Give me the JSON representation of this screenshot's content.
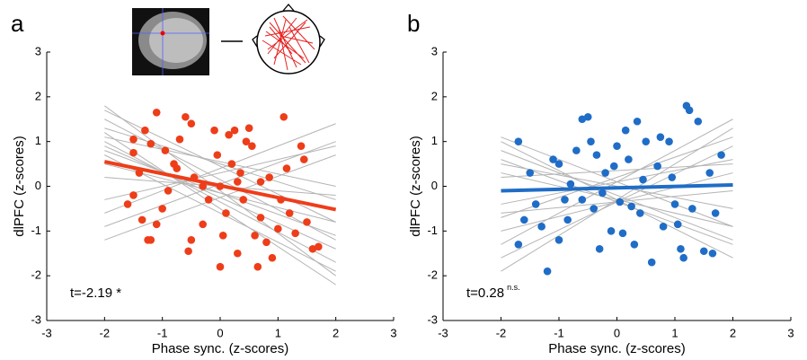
{
  "chart_data": [
    {
      "type": "scatter",
      "panel_label": "a",
      "xlabel": "Phase sync. (z-scores)",
      "ylabel": "dlPFC (z-scores)",
      "annotation": "t=-2.19 *",
      "xlim": [
        -3,
        3
      ],
      "ylim": [
        -3,
        3
      ],
      "xticks": [
        -3,
        -2,
        -1,
        0,
        1,
        2,
        3
      ],
      "yticks": [
        -3,
        -2,
        -1,
        0,
        1,
        2,
        3
      ],
      "color": "#ee3d19",
      "x": [
        -1.5,
        -1.5,
        -1.3,
        -1.1,
        -1.2,
        -1.4,
        -1.6,
        -1.5,
        -1.35,
        -1.25,
        -1.1,
        -1.0,
        -0.9,
        -0.8,
        -0.7,
        -0.6,
        -0.5,
        -0.55,
        -0.5,
        -0.45,
        -0.3,
        -0.2,
        -0.1,
        -0.05,
        0.0,
        0.0,
        0.1,
        0.15,
        0.2,
        0.25,
        0.3,
        0.35,
        0.4,
        0.45,
        0.5,
        0.55,
        0.6,
        0.65,
        0.7,
        0.8,
        0.85,
        0.9,
        1.0,
        1.05,
        1.1,
        1.15,
        1.2,
        1.3,
        1.4,
        1.5,
        1.6,
        1.7,
        -1.2,
        -0.75,
        0.3,
        -0.3,
        0.7,
        1.45,
        -0.95,
        0.05
      ],
      "values": [
        0.75,
        1.05,
        1.25,
        1.65,
        0.95,
        0.3,
        -0.4,
        -0.2,
        -0.75,
        -1.2,
        -0.85,
        -0.5,
        -0.1,
        0.5,
        1.05,
        1.55,
        1.4,
        -1.45,
        -1.2,
        0.2,
        -0.85,
        -0.3,
        1.25,
        0.7,
        -1.8,
        0.0,
        -0.6,
        1.15,
        0.5,
        1.25,
        -1.5,
        0.3,
        -0.3,
        1.0,
        1.3,
        0.9,
        -1.1,
        -1.8,
        -0.7,
        -1.25,
        0.2,
        -1.6,
        -0.95,
        -0.3,
        1.55,
        0.4,
        -0.6,
        -1.05,
        0.9,
        -0.8,
        -1.4,
        -1.35,
        -1.2,
        0.4,
        0.1,
        0.0,
        0.1,
        0.6,
        0.8,
        -1.1
      ],
      "fit": {
        "x": [
          -2,
          2
        ],
        "values": [
          0.55,
          -0.52
        ],
        "color": "#ee3d19"
      },
      "subject_fits": {
        "x": [
          -2,
          2
        ],
        "color": "#b4b4b4",
        "lines": [
          [
            1.2,
            -2.2
          ],
          [
            1.0,
            -1.7
          ],
          [
            0.9,
            -1.4
          ],
          [
            -0.6,
            1.4
          ],
          [
            -0.9,
            1.0
          ],
          [
            1.5,
            -1.2
          ],
          [
            0.5,
            -0.8
          ],
          [
            1.3,
            -0.3
          ],
          [
            -0.3,
            0.9
          ],
          [
            0.7,
            -1.9
          ],
          [
            1.7,
            -0.8
          ],
          [
            0.2,
            -0.2
          ],
          [
            -1.2,
            0.7
          ],
          [
            1.1,
            0.0
          ],
          [
            0.8,
            -1.1
          ],
          [
            1.8,
            -2.0
          ]
        ]
      }
    },
    {
      "type": "scatter",
      "panel_label": "b",
      "xlabel": "Phase sync. (z-scores)",
      "ylabel": "dlPFC (z-scores)",
      "annotation": "t=0.28",
      "annotation_sup": "n.s.",
      "xlim": [
        -3,
        3
      ],
      "ylim": [
        -3,
        3
      ],
      "xticks": [
        -3,
        -2,
        -1,
        0,
        1,
        2,
        3
      ],
      "yticks": [
        -3,
        -2,
        -1,
        0,
        1,
        2,
        3
      ],
      "color": "#1f6dc6",
      "x": [
        -1.7,
        -1.7,
        -1.5,
        -1.4,
        -1.3,
        -1.2,
        -1.1,
        -1.0,
        -1.0,
        -0.9,
        -0.8,
        -0.7,
        -0.6,
        -0.5,
        -0.45,
        -0.4,
        -0.35,
        -0.3,
        -0.2,
        -0.1,
        0.0,
        0.05,
        0.1,
        0.15,
        0.2,
        0.3,
        0.35,
        0.4,
        0.5,
        0.6,
        0.7,
        0.75,
        0.8,
        0.9,
        1.0,
        1.1,
        1.15,
        1.2,
        1.25,
        1.3,
        1.4,
        1.5,
        1.6,
        1.7,
        1.8,
        -0.6,
        -0.25,
        0.25,
        -1.6,
        0.45,
        0.95,
        -0.05,
        1.05,
        -0.85,
        1.65
      ],
      "values": [
        1.0,
        -1.3,
        0.3,
        -0.4,
        -0.9,
        -1.9,
        0.6,
        0.5,
        -1.2,
        -0.3,
        0.05,
        0.8,
        1.5,
        1.55,
        1.0,
        -0.5,
        0.7,
        -1.4,
        0.3,
        -1.0,
        0.9,
        -0.35,
        -1.05,
        1.25,
        0.6,
        -1.3,
        1.45,
        -0.6,
        1.0,
        -1.7,
        0.45,
        1.1,
        -0.9,
        1.0,
        -0.4,
        -1.4,
        -1.6,
        1.8,
        1.7,
        -0.5,
        1.45,
        -1.45,
        0.3,
        -0.6,
        0.7,
        -0.3,
        -0.15,
        -0.45,
        -0.75,
        0.15,
        0.2,
        0.45,
        -0.85,
        -0.75,
        -1.5
      ],
      "fit": {
        "x": [
          -2,
          2
        ],
        "values": [
          -0.1,
          0.03
        ],
        "color": "#1f6dc6"
      },
      "subject_fits": {
        "x": [
          -2,
          2
        ],
        "color": "#b4b4b4",
        "lines": [
          [
            1.0,
            -1.6
          ],
          [
            0.5,
            -0.5
          ],
          [
            -1.3,
            1.5
          ],
          [
            -1.6,
            0.9
          ],
          [
            0.8,
            -1.2
          ],
          [
            -0.7,
            1.1
          ],
          [
            -1.0,
            0.3
          ],
          [
            0.3,
            -0.9
          ],
          [
            -0.4,
            0.6
          ],
          [
            1.1,
            -0.9
          ],
          [
            -1.9,
            1.3
          ],
          [
            0.2,
            0.5
          ],
          [
            -0.6,
            -0.1
          ],
          [
            0.6,
            -1.3
          ]
        ]
      }
    }
  ]
}
